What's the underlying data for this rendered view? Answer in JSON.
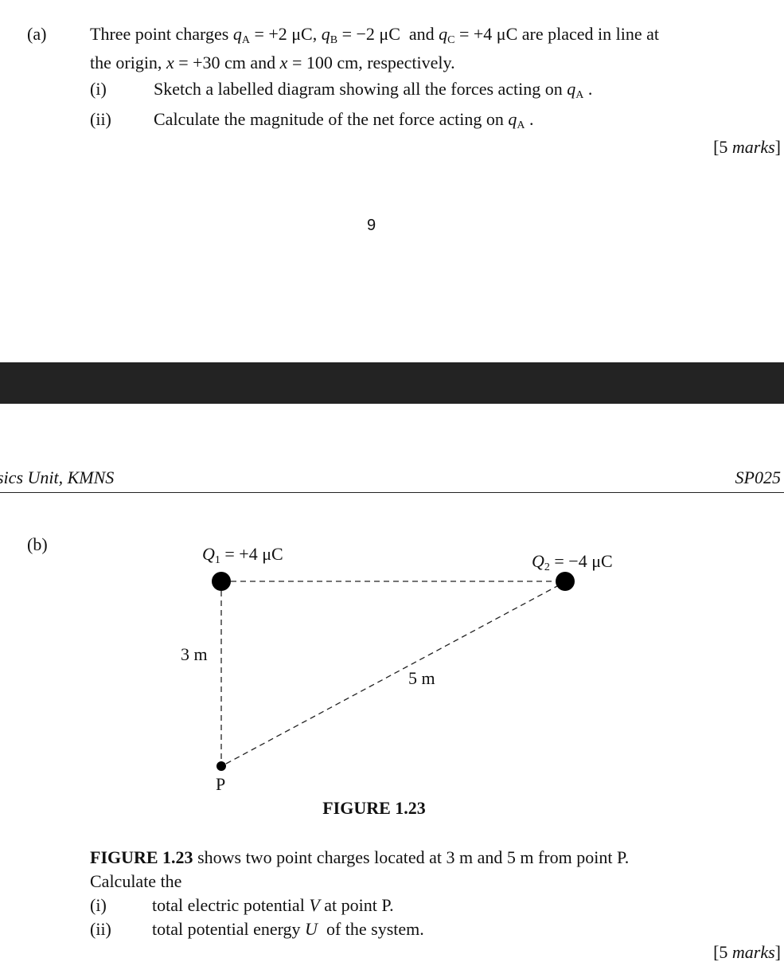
{
  "part_a": {
    "label": "(a)",
    "line1": [
      "Three point charges ",
      "q",
      "A",
      " = +2 μC, ",
      "q",
      "B",
      " = −2 μC  and ",
      "q",
      "C",
      " = +4 μC are placed in line at"
    ],
    "line2": [
      "the origin, ",
      "x",
      " = +30 cm and ",
      "x",
      " = 100 cm, respectively."
    ],
    "items": [
      {
        "label": "(i)",
        "text": [
          "Sketch a labelled diagram showing all the forces acting on ",
          "q",
          "A",
          " ."
        ]
      },
      {
        "label": "(ii)",
        "text": [
          "Calculate the magnitude of the net force acting on ",
          "q",
          "A",
          " ."
        ]
      }
    ],
    "marks": [
      "[5 ",
      "marks",
      "]"
    ]
  },
  "page_number": "9",
  "header": {
    "left": "sics Unit, KMNS",
    "right": "SP025"
  },
  "part_b": {
    "label": "(b)",
    "figure": {
      "q1": [
        "Q",
        "1",
        " = +4 μC"
      ],
      "q2": [
        "Q",
        "2",
        " = −4 μC"
      ],
      "side_vertical": "3 m",
      "side_diagonal": "5 m",
      "point": "P",
      "caption": "FIGURE 1.23"
    },
    "paragraph": [
      "FIGURE 1.23",
      " shows two point charges located at 3 m and 5 m from point P."
    ],
    "line2": "Calculate the",
    "items": [
      {
        "label": "(i)",
        "text": [
          "total electric potential ",
          "V",
          " at point P."
        ]
      },
      {
        "label": "(ii)",
        "text": [
          "total potential energy ",
          "U",
          "  of the system."
        ]
      }
    ],
    "marks": [
      "[5 ",
      "marks",
      "]"
    ]
  }
}
